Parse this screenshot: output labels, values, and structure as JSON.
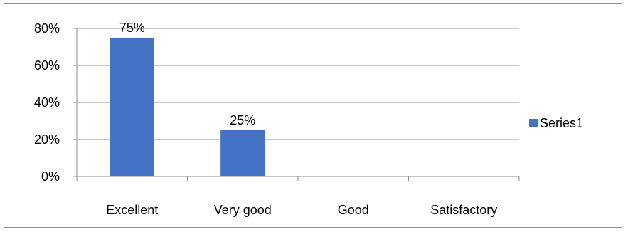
{
  "chart_data": {
    "type": "bar",
    "categories": [
      "Excellent",
      "Very good",
      "Good",
      "Satisfactory"
    ],
    "series": [
      {
        "name": "Series1",
        "values": [
          75,
          25,
          0,
          0
        ],
        "labels": [
          "75%",
          "25%",
          "",
          ""
        ],
        "color": "#4472C4"
      }
    ],
    "title": "",
    "xlabel": "",
    "ylabel": "",
    "ylim": [
      0,
      80
    ],
    "yticks": [
      0,
      20,
      40,
      60,
      80
    ],
    "ytick_labels": [
      "0%",
      "20%",
      "40%",
      "60%",
      "80%"
    ],
    "grid": true,
    "legend": "right"
  }
}
